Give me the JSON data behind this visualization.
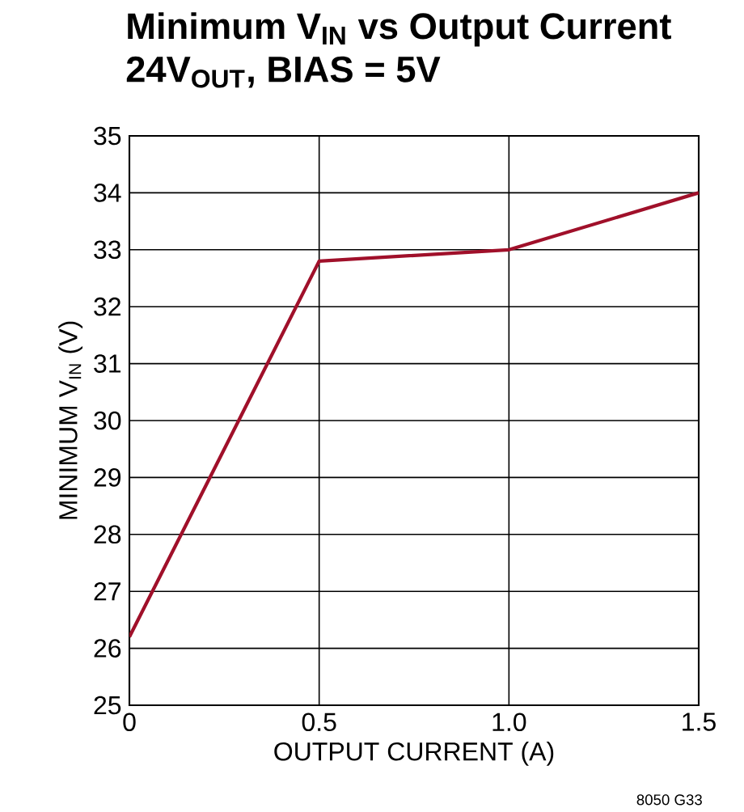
{
  "chart_data": {
    "type": "line",
    "title": "Minimum V$_{IN}$ vs Output Current",
    "subtitle": "24V$_{OUT}$, BIAS = 5V",
    "xlabel": "OUTPUT CURRENT (A)",
    "ylabel": "MINIMUM V$_{IN}$ (V)",
    "annotations": [
      "8050 G33"
    ],
    "x": [
      0,
      0.5,
      1.0,
      1.5
    ],
    "series": [
      {
        "color": "#a0102a",
        "values": [
          26.2,
          32.8,
          33.0,
          34.0
        ]
      }
    ],
    "xlim": [
      0,
      1.5
    ],
    "ylim": [
      25,
      35
    ],
    "xticks": [
      0,
      0.5,
      {
        "value": 1.0,
        "label": "1.0"
      },
      1.5
    ],
    "yticks": [
      25,
      26,
      27,
      28,
      29,
      30,
      31,
      32,
      33,
      34,
      35
    ],
    "grid": true,
    "marker": "none",
    "line_style": "solid"
  }
}
